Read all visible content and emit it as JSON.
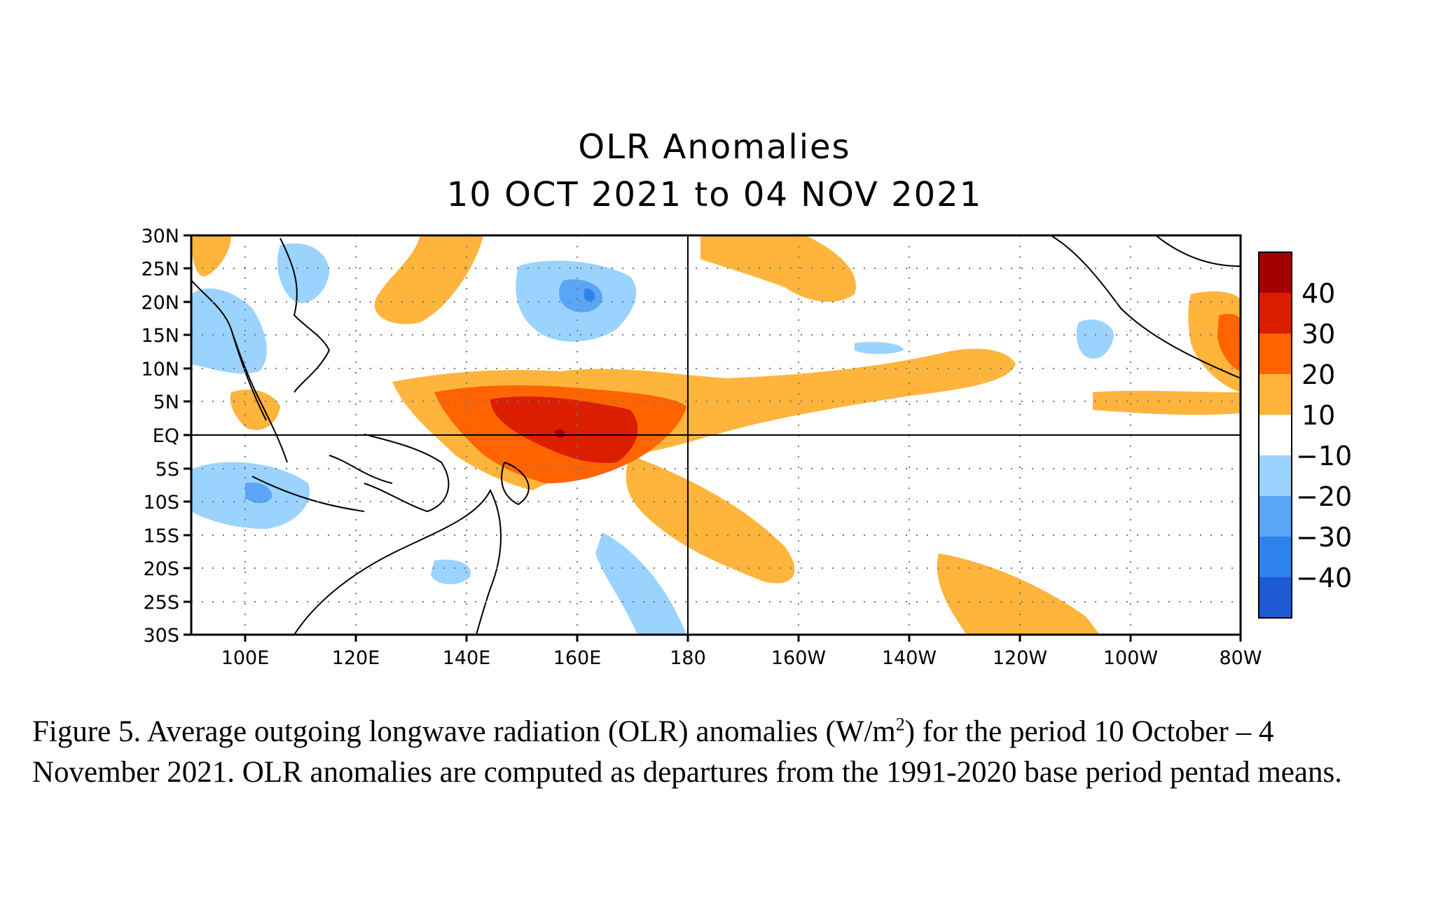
{
  "title": "OLR Anomalies",
  "subtitle": "10 OCT 2021 to 04 NOV 2021",
  "x_ticks": [
    "100E",
    "120E",
    "140E",
    "160E",
    "180",
    "160W",
    "140W",
    "120W",
    "100W",
    "80W"
  ],
  "y_ticks": [
    "30N",
    "25N",
    "20N",
    "15N",
    "10N",
    "5N",
    "EQ",
    "5S",
    "10S",
    "15S",
    "20S",
    "25S",
    "30S"
  ],
  "colorbar": {
    "labels": [
      "40",
      "30",
      "20",
      "10",
      "−10",
      "−20",
      "−30",
      "−40"
    ],
    "colors": [
      "#a50000",
      "#dc1e00",
      "#ff6400",
      "#ffb43c",
      "#ffffff",
      "#9bd3ff",
      "#5aa5f5",
      "#2d82eb",
      "#1e5ad2"
    ]
  },
  "caption": {
    "part1": "Figure 5. Average outgoing longwave radiation (OLR) anomalies (W/m",
    "sup": "2",
    "part2": ") for the period 10 October – 4 November 2021.  OLR anomalies are computed as departures from the 1991-2020 base period pentad means."
  }
}
